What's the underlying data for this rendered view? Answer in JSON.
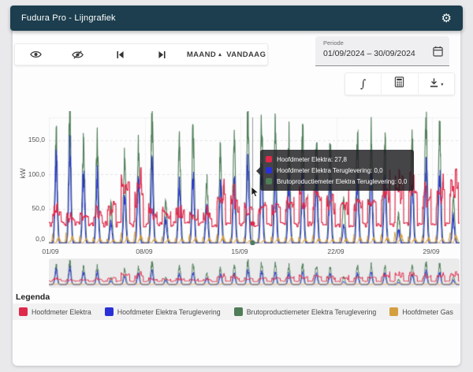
{
  "app": {
    "title": "Fudura Pro - Lijngrafiek"
  },
  "icons": {
    "gear": "⚙",
    "dropdown_caret": "▴",
    "download_caret": "▾",
    "integral": "∫"
  },
  "toolbar": {
    "maand_label": "MAAND",
    "vandaag_label": "VANDAAG"
  },
  "period": {
    "label": "Periode",
    "value": "01/09/2024 – 30/09/2024"
  },
  "tooltip": {
    "rows": [
      {
        "text": "Hoofdmeter Elektra: 27,8",
        "color": "#e0294a"
      },
      {
        "text": "Hoofdmeter Elektra Teruglevering: 0,0",
        "color": "#2a30d8"
      },
      {
        "text": "Brutoproductiemeter Elektra Teruglevering: 0,0",
        "color": "#4e7d57"
      }
    ]
  },
  "legend": {
    "title": "Legenda",
    "items": [
      {
        "label": "Hoofdmeter Elektra",
        "color": "#e0294a"
      },
      {
        "label": "Hoofdmeter Elektra Teruglevering",
        "color": "#2a30d8"
      },
      {
        "label": "Brutoproductiemeter Elektra Teruglevering",
        "color": "#4e7d57"
      },
      {
        "label": "Hoofdmeter Gas",
        "color": "#d49f3e"
      }
    ]
  },
  "chart_data": {
    "type": "line",
    "title": "",
    "xlabel": "",
    "ylabel": "kW",
    "ylim": [
      0,
      190
    ],
    "yticks": [
      "0,0",
      "50,0",
      "100,0",
      "150,0"
    ],
    "ytick_values": [
      0,
      50,
      100,
      150
    ],
    "xticks": [
      "01/09",
      "08/09",
      "15/09",
      "22/09",
      "29/09"
    ],
    "x_range_days": 30,
    "grid": true,
    "legend_position": "bottom",
    "has_overview_strip": true,
    "series": [
      {
        "name": "Hoofdmeter Elektra",
        "color": "#e0294a",
        "pattern": "demand",
        "night_baseline_kw": 27,
        "daily_peaks_kw": [
          55,
          48,
          52,
          60,
          68,
          105,
          95,
          60,
          55,
          62,
          50,
          48,
          85,
          75,
          70,
          65,
          68,
          72,
          88,
          95,
          80,
          70,
          75,
          82,
          100,
          112,
          118,
          95,
          88,
          115
        ]
      },
      {
        "name": "Hoofdmeter Elektra Teruglevering",
        "color": "#2a30d8",
        "pattern": "solar",
        "daily_peaks_kw": [
          118,
          132,
          100,
          95,
          28,
          68,
          85,
          112,
          35,
          88,
          98,
          55,
          80,
          90,
          115,
          100,
          95,
          85,
          92,
          85,
          80,
          25,
          85,
          95,
          88,
          18,
          85,
          110,
          100,
          35
        ]
      },
      {
        "name": "Brutoproductiemeter Elektra Teruglevering",
        "color": "#4e7d57",
        "pattern": "solar",
        "daily_peaks_kw": [
          155,
          185,
          150,
          148,
          55,
          120,
          135,
          180,
          60,
          145,
          160,
          90,
          135,
          150,
          185,
          170,
          165,
          150,
          160,
          150,
          145,
          60,
          150,
          160,
          150,
          40,
          150,
          185,
          170,
          65
        ]
      },
      {
        "name": "Hoofdmeter Gas",
        "color": "#d49f3e",
        "pattern": "gas",
        "daily_peaks_kw": [
          9,
          11,
          7,
          8,
          5,
          10,
          13,
          8,
          6,
          7,
          9,
          8,
          11,
          7,
          6,
          5,
          8,
          9,
          7,
          8,
          6,
          7,
          9,
          8,
          10,
          13,
          9,
          8,
          7,
          12
        ]
      }
    ],
    "hover": {
      "day_fraction": 14.88,
      "values_kw": {
        "hoofdmeter_elektra": 27.8,
        "hoofdmeter_elektra_teruglevering": 0.0,
        "brutoproductiemeter_elektra_teruglevering": 0.0
      }
    }
  }
}
